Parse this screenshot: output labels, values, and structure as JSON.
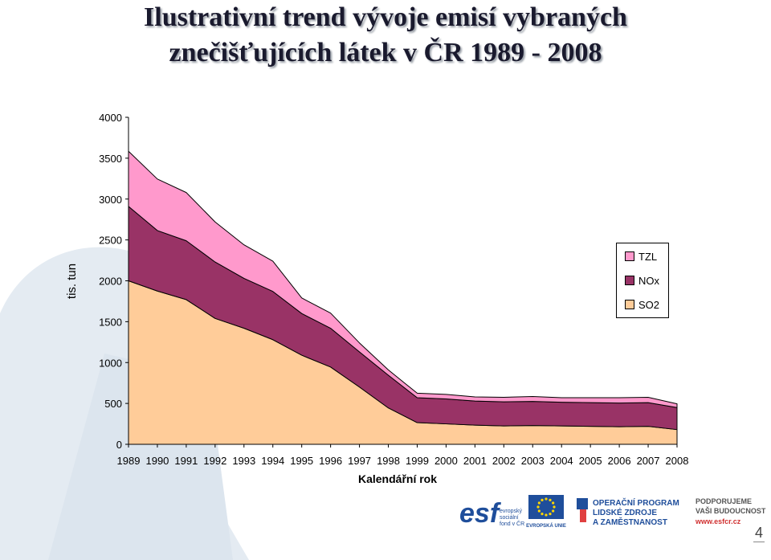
{
  "title_line1": "Ilustrativní trend vývoje emisí vybraných",
  "title_line2": "znečišťujících látek v ČR 1989 - 2008",
  "page_number": "4",
  "colors": {
    "so2": "#FFCC99",
    "nox": "#993366",
    "tzl": "#FF99CC",
    "accent_blue": "#1F4E9B",
    "deco": "#E8EEF4"
  },
  "logos": {
    "esf_text": "esf",
    "esf_sub1": "evropský",
    "esf_sub2": "sociální",
    "esf_sub3": "fond v ČR",
    "eu_label": "EVROPSKÁ UNIE",
    "op_line1": "OPERAČNÍ PROGRAM",
    "op_line2": "LIDSKÉ ZDROJE",
    "op_line3": "A ZAMĚSTNANOST",
    "support_line1": "PODPORUJEME",
    "support_line2": "VAŠI BUDOUCNOST",
    "support_url": "www.esfcr.cz"
  },
  "chart_data": {
    "type": "area",
    "stacked": true,
    "xlabel": "Kalendářní rok",
    "ylabel": "tis. tun",
    "ylim": [
      0,
      4000
    ],
    "yticks": [
      0,
      500,
      1000,
      1500,
      2000,
      2500,
      3000,
      3500,
      4000
    ],
    "legend_position": "right",
    "categories": [
      "1989",
      "1990",
      "1991",
      "1992",
      "1993",
      "1994",
      "1995",
      "1996",
      "1997",
      "1998",
      "1999",
      "2000",
      "2001",
      "2002",
      "2003",
      "2004",
      "2005",
      "2006",
      "2007",
      "2008"
    ],
    "series": [
      {
        "name": "SO2",
        "color": "#FFCC99",
        "values": [
          2000,
          1875,
          1770,
          1540,
          1420,
          1280,
          1090,
          945,
          700,
          445,
          265,
          250,
          235,
          225,
          230,
          225,
          220,
          215,
          220,
          180
        ]
      },
      {
        "name": "NOx",
        "color": "#993366",
        "values": [
          910,
          740,
          720,
          690,
          610,
          590,
          510,
          475,
          430,
          400,
          305,
          305,
          295,
          295,
          295,
          290,
          290,
          290,
          290,
          270
        ]
      },
      {
        "name": "TZL",
        "color": "#FF99CC",
        "values": [
          675,
          630,
          590,
          490,
          410,
          370,
          190,
          185,
          110,
          65,
          55,
          55,
          50,
          55,
          60,
          55,
          60,
          65,
          65,
          45
        ]
      }
    ]
  }
}
